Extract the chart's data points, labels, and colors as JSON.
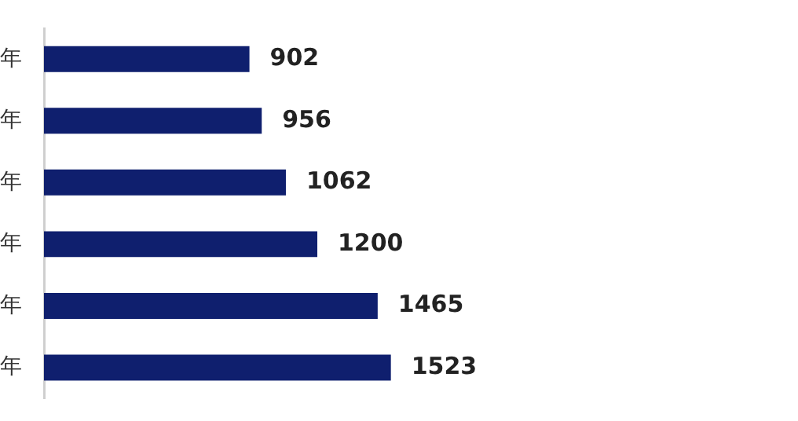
{
  "chart_data": {
    "type": "bar",
    "orientation": "horizontal",
    "categories": [
      "年",
      "年",
      "年",
      "年",
      "年",
      "年"
    ],
    "values": [
      902,
      956,
      1062,
      1200,
      1465,
      1523
    ],
    "color": "#0f1f6e",
    "data_labels": true,
    "legend": false,
    "tick_labels": "y"
  }
}
